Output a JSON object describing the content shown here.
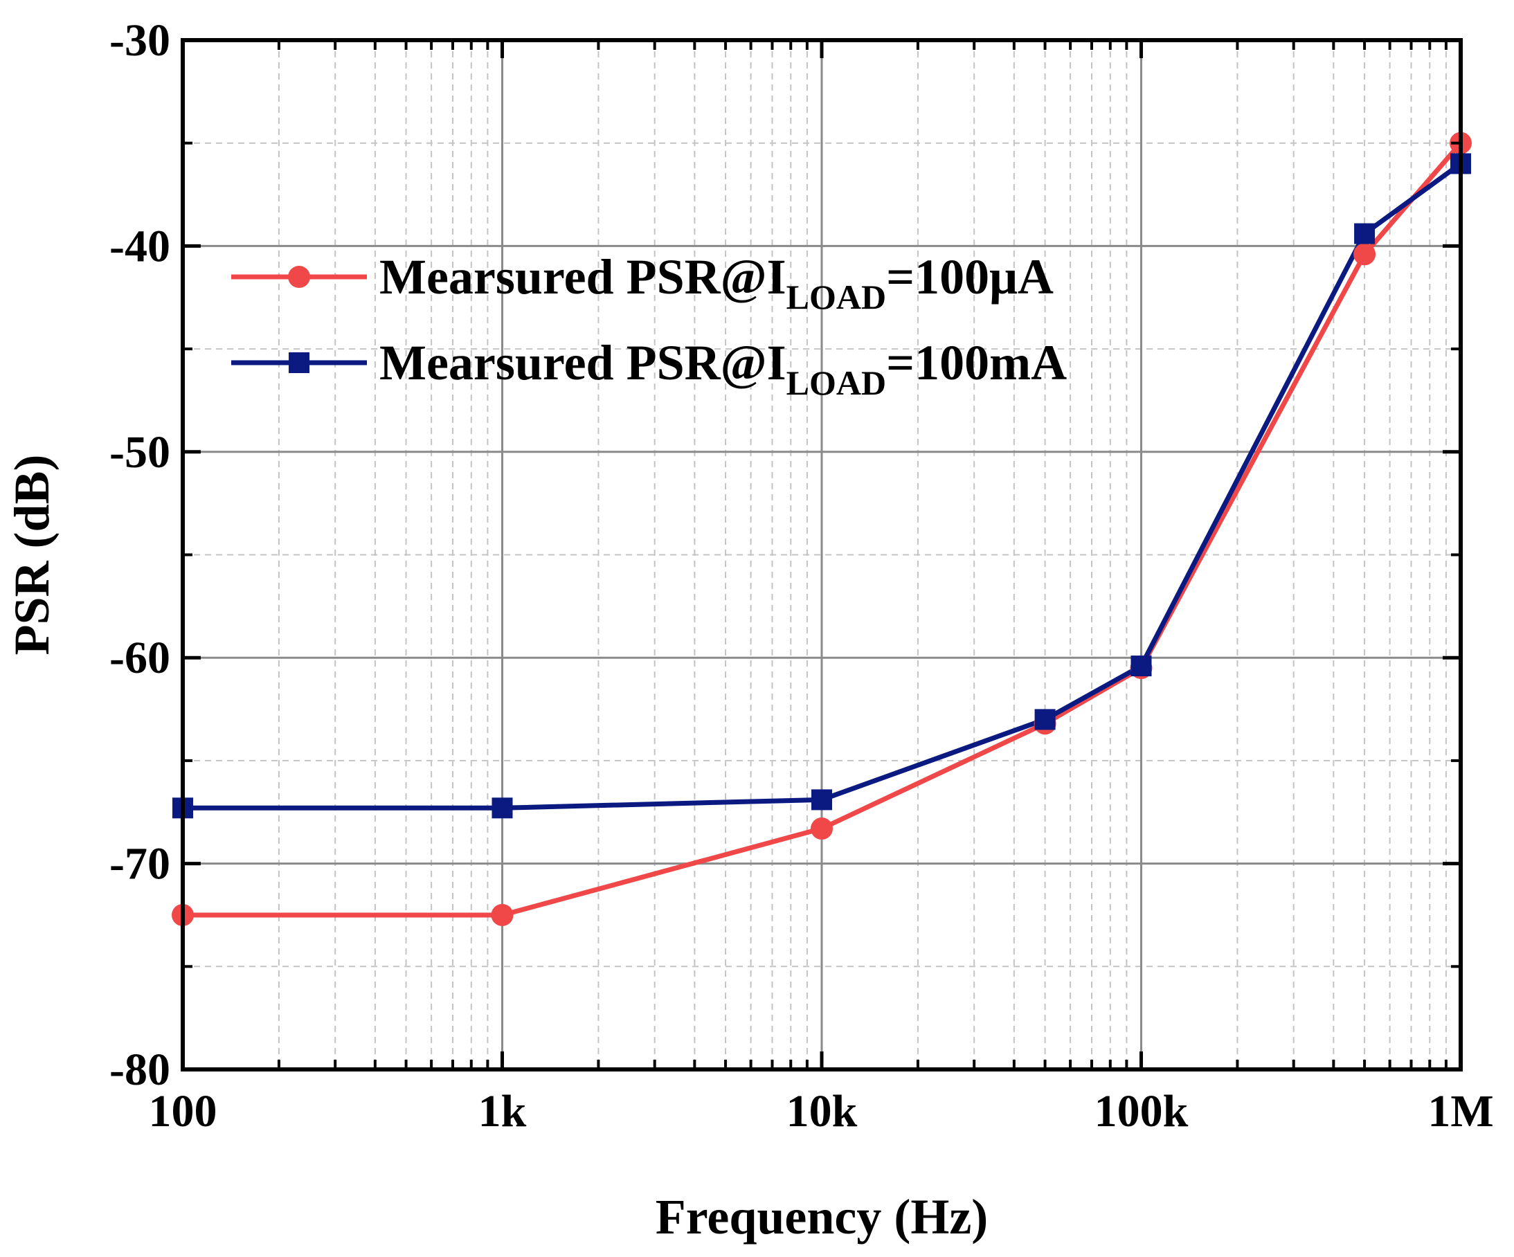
{
  "chart_data": {
    "type": "line",
    "title": "",
    "xlabel": "Frequency (Hz)",
    "ylabel": "PSR (dB)",
    "xscale": "log",
    "xlim": [
      100,
      1000000
    ],
    "ylim": [
      -80,
      -30
    ],
    "xticks": [
      100,
      1000,
      10000,
      100000,
      1000000
    ],
    "xtick_labels": [
      "100",
      "1k",
      "10k",
      "100k",
      "1M"
    ],
    "yticks": [
      -80,
      -70,
      -60,
      -50,
      -40,
      -30
    ],
    "ytick_labels": [
      "-80",
      "-70",
      "-60",
      "-50",
      "-40",
      "-30"
    ],
    "grid": true,
    "legend_position": "top-left",
    "series": [
      {
        "name": "Mearsured PSR@I_LOAD=100μA",
        "legend_main": "Mearsured PSR@I",
        "legend_sub": "LOAD",
        "legend_tail": "=100μA",
        "color": "#f04848",
        "marker": "circle",
        "x": [
          100,
          1000,
          10000,
          50000,
          100000,
          500000,
          1000000
        ],
        "y": [
          -72.5,
          -72.5,
          -68.3,
          -63.2,
          -60.5,
          -40.4,
          -35.0
        ]
      },
      {
        "name": "Mearsured PSR@I_LOAD=100mA",
        "legend_main": "Mearsured PSR@I",
        "legend_sub": "LOAD",
        "legend_tail": "=100mA",
        "color": "#0a1a80",
        "marker": "square",
        "x": [
          100,
          1000,
          10000,
          50000,
          100000,
          500000,
          1000000
        ],
        "y": [
          -67.3,
          -67.3,
          -66.9,
          -63.0,
          -60.4,
          -39.4,
          -36.0
        ]
      }
    ]
  }
}
